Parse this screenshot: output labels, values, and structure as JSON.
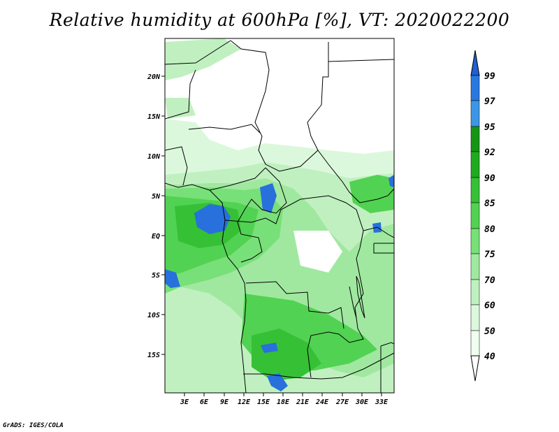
{
  "title": "Relative humidity at 600hPa [%], VT: 2020022200",
  "credit": "GrADS: IGES/COLA",
  "map": {
    "lat_labels": [
      "20N",
      "15N",
      "10N",
      "5N",
      "EQ",
      "5S",
      "10S",
      "15S"
    ],
    "lon_labels": [
      "3E",
      "6E",
      "9E",
      "12E",
      "15E",
      "18E",
      "21E",
      "24E",
      "27E",
      "30E",
      "33E"
    ]
  },
  "colorbar": {
    "labels": [
      "99",
      "97",
      "95",
      "92",
      "90",
      "85",
      "80",
      "75",
      "70",
      "60",
      "50",
      "40"
    ],
    "colors": [
      "#2060d0",
      "#2878e0",
      "#3c96e6",
      "#149614",
      "#20aa20",
      "#36c036",
      "#52d252",
      "#78e078",
      "#a0e8a0",
      "#c0f0c0",
      "#dcf8dc",
      "#f0fff0",
      "#ffffff"
    ]
  }
}
